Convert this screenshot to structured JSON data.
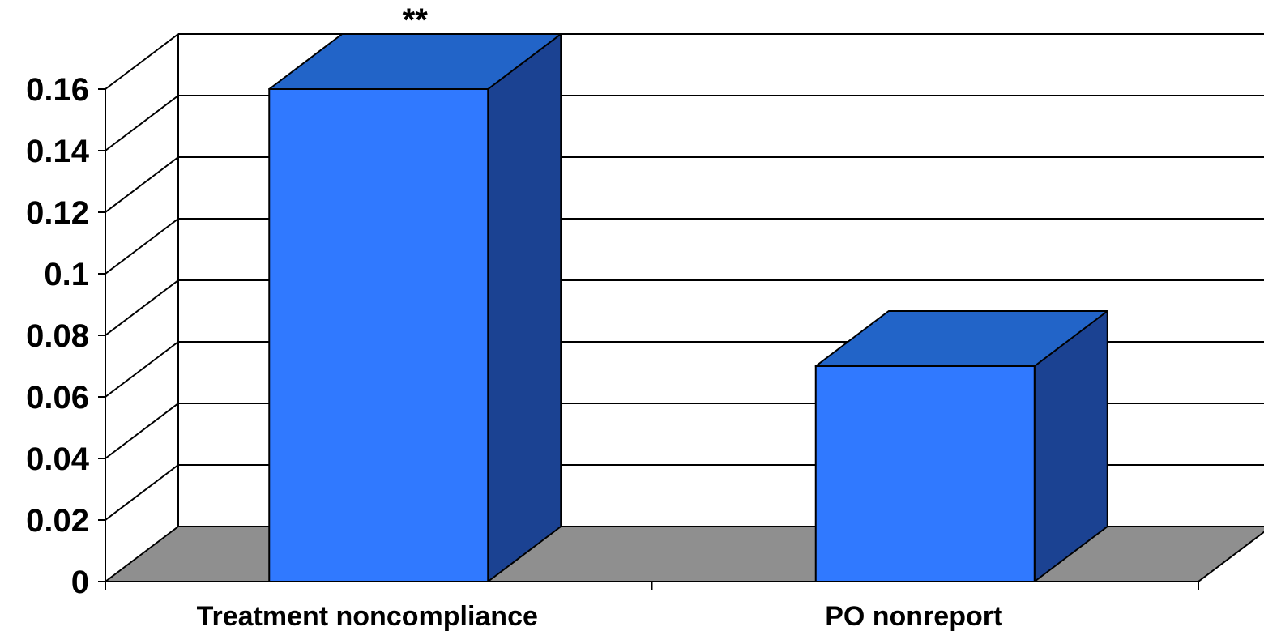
{
  "chart_data": {
    "type": "bar",
    "title": "",
    "xlabel": "",
    "ylabel": "",
    "categories": [
      "Treatment noncompliance",
      "PO nonreport"
    ],
    "values": [
      0.16,
      0.07
    ],
    "ylim": [
      0,
      0.16
    ],
    "yticks": [
      0,
      0.02,
      0.04,
      0.06,
      0.08,
      0.1,
      0.12,
      0.14,
      0.16
    ],
    "ytick_labels": [
      "0",
      "0.02",
      "0.04",
      "0.06",
      "0.08",
      "0.1",
      "0.12",
      "0.14",
      "0.16"
    ],
    "annotations": [
      {
        "category": "Treatment noncompliance",
        "text": "**"
      }
    ],
    "style": "3d",
    "grid": true,
    "legend": "none",
    "colors": {
      "bar_front": "#3079FF",
      "bar_top": "#2264C8",
      "bar_side": "#1B4292",
      "floor": "#8F8F8F",
      "grid": "#000000",
      "background": "#FFFFFF"
    }
  }
}
